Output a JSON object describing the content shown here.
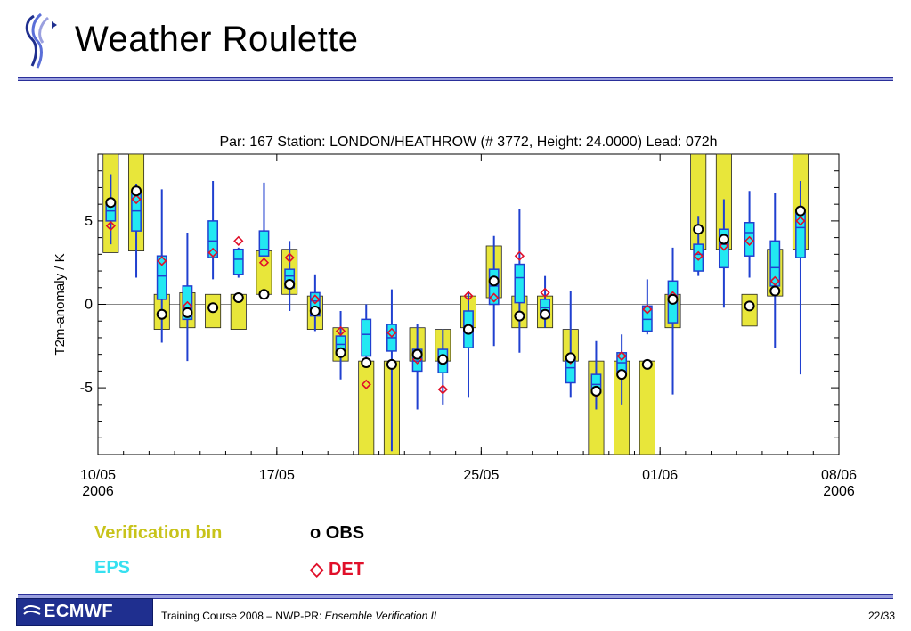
{
  "slide": {
    "title": "Weather Roulette",
    "footer_course": "Training Course 2008 – NWP-PR: ",
    "footer_topic": "Ensemble Verification II",
    "page": "22/33",
    "footer_logo_text": "ECMWF"
  },
  "legend": {
    "verification": "Verification bin",
    "eps": "EPS",
    "obs": "o OBS",
    "det": "◇ DET"
  },
  "colors": {
    "bin": "#e8e63a",
    "eps_box": "#22e8f2",
    "whisker": "#2040d0",
    "det": "#e0102a",
    "accent": "#2a2f9a"
  },
  "chart_data": {
    "type": "box",
    "title": "Par: 167 Station:  LONDON/HEATHROW  (# 3772, Height: 24.0000) Lead: 072h",
    "ylabel": "T2m-anomaly / K",
    "xlabel": "",
    "ylim": [
      -9,
      9
    ],
    "xlim": [
      0,
      29
    ],
    "yticks": [
      -5,
      0,
      5
    ],
    "xticks": [
      {
        "x": 0,
        "label": "10/05",
        "sub": "2006"
      },
      {
        "x": 7,
        "label": "17/05",
        "sub": ""
      },
      {
        "x": 15,
        "label": "25/05",
        "sub": ""
      },
      {
        "x": 22,
        "label": "01/06",
        "sub": ""
      },
      {
        "x": 29,
        "label": "08/06",
        "sub": "2006"
      }
    ],
    "days": [
      {
        "bin": [
          3.1,
          9
        ],
        "wlo": 3.6,
        "q1": 5.0,
        "med": 5.6,
        "q3": 6.0,
        "whi": 7.8,
        "obs": 6.1,
        "det": 4.7
      },
      {
        "bin": [
          3.2,
          9
        ],
        "wlo": 1.6,
        "q1": 4.4,
        "med": 5.6,
        "q3": 6.7,
        "whi": 7.2,
        "obs": 6.8,
        "det": 6.3
      },
      {
        "bin": [
          -1.5,
          0.6
        ],
        "wlo": -2.3,
        "q1": 0.3,
        "med": 1.7,
        "q3": 2.9,
        "whi": 6.9,
        "obs": -0.6,
        "det": 2.6
      },
      {
        "bin": [
          -1.4,
          0.7
        ],
        "wlo": -3.4,
        "q1": -0.9,
        "med": -0.2,
        "q3": 1.1,
        "whi": 4.3,
        "obs": -0.5,
        "det": -0.1
      },
      {
        "bin": [
          -1.4,
          0.6
        ],
        "wlo": 1.5,
        "q1": 2.8,
        "med": 3.8,
        "q3": 5.0,
        "whi": 7.4,
        "obs": -0.2,
        "det": 3.1
      },
      {
        "bin": [
          -1.5,
          0.6
        ],
        "wlo": 1.6,
        "q1": 1.8,
        "med": 2.7,
        "q3": 3.3,
        "whi": 3.4,
        "obs": 0.4,
        "det": 3.8
      },
      {
        "bin": [
          0.6,
          3.2
        ],
        "wlo": 3.2,
        "q1": 2.9,
        "med": 3.3,
        "q3": 4.4,
        "whi": 7.3,
        "obs": 0.6,
        "det": 2.5
      },
      {
        "bin": [
          0.6,
          3.3
        ],
        "wlo": -0.4,
        "q1": 1.0,
        "med": 1.7,
        "q3": 2.1,
        "whi": 3.8,
        "obs": 1.2,
        "det": 2.8
      },
      {
        "bin": [
          -1.5,
          0.5
        ],
        "wlo": -1.6,
        "q1": -0.7,
        "med": 0.2,
        "q3": 0.7,
        "whi": 1.8,
        "obs": -0.4,
        "det": 0.3
      },
      {
        "bin": [
          -3.4,
          -1.4
        ],
        "wlo": -4.5,
        "q1": -3.0,
        "med": -2.4,
        "q3": -1.9,
        "whi": -0.4,
        "obs": -2.9,
        "det": -1.6
      },
      {
        "bin": [
          -9,
          -3.4
        ],
        "wlo": -3.2,
        "q1": -3.1,
        "med": -1.8,
        "q3": -0.9,
        "whi": 0.0,
        "obs": -3.5,
        "det": -4.8
      },
      {
        "bin": [
          -9,
          -3.4
        ],
        "wlo": -8.8,
        "q1": -2.8,
        "med": -2.0,
        "q3": -1.2,
        "whi": 0.9,
        "obs": -3.6,
        "det": -1.7
      },
      {
        "bin": [
          -3.4,
          -1.4
        ],
        "wlo": -6.3,
        "q1": -4.0,
        "med": -3.4,
        "q3": -2.7,
        "whi": -1.2,
        "obs": -3.0,
        "det": -3.3
      },
      {
        "bin": [
          -3.4,
          -1.5
        ],
        "wlo": -6.0,
        "q1": -4.1,
        "med": -3.3,
        "q3": -2.7,
        "whi": -1.5,
        "obs": -3.3,
        "det": -5.1
      },
      {
        "bin": [
          -1.4,
          0.5
        ],
        "wlo": -5.6,
        "q1": -2.6,
        "med": -1.3,
        "q3": -0.4,
        "whi": 0.8,
        "obs": -1.5,
        "det": 0.5
      },
      {
        "bin": [
          0.4,
          3.5
        ],
        "wlo": -2.5,
        "q1": 0.0,
        "med": 1.1,
        "q3": 2.1,
        "whi": 4.1,
        "obs": 1.4,
        "det": 0.4
      },
      {
        "bin": [
          -1.4,
          0.5
        ],
        "wlo": -2.9,
        "q1": 0.1,
        "med": 1.6,
        "q3": 2.4,
        "whi": 5.7,
        "obs": -0.7,
        "det": 2.9
      },
      {
        "bin": [
          -1.4,
          0.5
        ],
        "wlo": -1.4,
        "q1": -0.8,
        "med": -0.2,
        "q3": 0.3,
        "whi": 1.7,
        "obs": -0.6,
        "det": 0.7
      },
      {
        "bin": [
          -3.4,
          -1.5
        ],
        "wlo": -5.6,
        "q1": -4.7,
        "med": -3.8,
        "q3": -3.2,
        "whi": 0.8,
        "obs": -3.2,
        "det": -3.3
      },
      {
        "bin": [
          -9,
          -3.4
        ],
        "wlo": -6.3,
        "q1": -5.3,
        "med": -4.8,
        "q3": -4.2,
        "whi": -2.2,
        "obs": -5.2,
        "det": -5.3
      },
      {
        "bin": [
          -9,
          -3.4
        ],
        "wlo": -6.0,
        "q1": -4.1,
        "med": -3.5,
        "q3": -2.9,
        "whi": -1.8,
        "obs": -4.2,
        "det": -3.1
      },
      {
        "bin": [
          -9,
          -3.4
        ],
        "wlo": -1.8,
        "q1": -1.6,
        "med": -0.9,
        "q3": -0.1,
        "whi": 1.5,
        "obs": -3.6,
        "det": -0.3
      },
      {
        "bin": [
          -1.4,
          0.6
        ],
        "wlo": -5.4,
        "q1": -1.1,
        "med": 0.3,
        "q3": 1.4,
        "whi": 3.4,
        "obs": 0.3,
        "det": 0.5
      },
      {
        "bin": [
          3.3,
          9
        ],
        "wlo": 1.7,
        "q1": 2.0,
        "med": 3.0,
        "q3": 3.6,
        "whi": 5.3,
        "obs": 4.5,
        "det": 2.9
      },
      {
        "bin": [
          3.3,
          9
        ],
        "wlo": -0.2,
        "q1": 2.2,
        "med": 3.6,
        "q3": 4.5,
        "whi": 6.3,
        "obs": 3.9,
        "det": 3.5
      },
      {
        "bin": [
          -1.3,
          0.6
        ],
        "wlo": 1.6,
        "q1": 2.9,
        "med": 4.3,
        "q3": 4.9,
        "whi": 6.8,
        "obs": -0.1,
        "det": 3.8
      },
      {
        "bin": [
          0.5,
          3.3
        ],
        "wlo": -2.6,
        "q1": 1.1,
        "med": 2.2,
        "q3": 3.8,
        "whi": 6.7,
        "obs": 0.8,
        "det": 1.4
      },
      {
        "bin": [
          3.3,
          9
        ],
        "wlo": -4.2,
        "q1": 2.8,
        "med": 4.6,
        "q3": 5.5,
        "whi": 7.4,
        "obs": 5.6,
        "det": 5.0
      }
    ]
  }
}
